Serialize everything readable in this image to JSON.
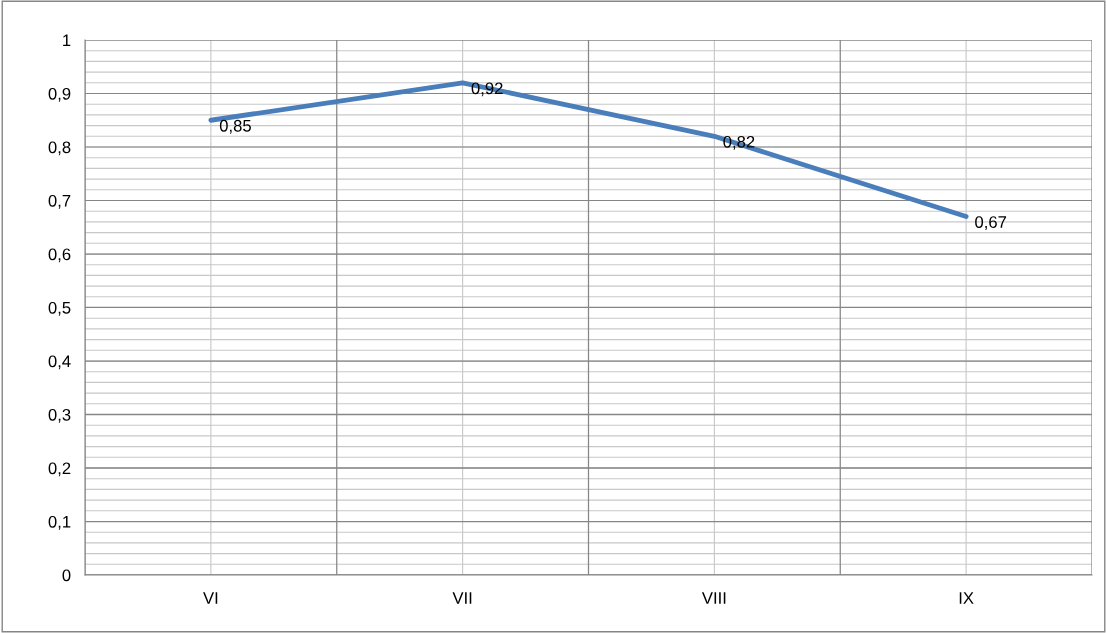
{
  "chart_data": {
    "type": "line",
    "categories": [
      "VI",
      "VII",
      "VIII",
      "IX"
    ],
    "series": [
      {
        "color": "#4a7ebb",
        "values": [
          0.85,
          0.92,
          0.82,
          0.67
        ],
        "value_labels": [
          "0,85",
          "0,92",
          "0,82",
          "0,67"
        ]
      }
    ],
    "ylim": [
      0,
      1
    ],
    "yticks": [
      {
        "value": 0,
        "label": "0"
      },
      {
        "value": 0.1,
        "label": "0,1"
      },
      {
        "value": 0.2,
        "label": "0,2"
      },
      {
        "value": 0.3,
        "label": "0,3"
      },
      {
        "value": 0.4,
        "label": "0,4"
      },
      {
        "value": 0.5,
        "label": "0,5"
      },
      {
        "value": 0.6,
        "label": "0,6"
      },
      {
        "value": 0.7,
        "label": "0,7"
      },
      {
        "value": 0.8,
        "label": "0,8"
      },
      {
        "value": 0.9,
        "label": "0,9"
      },
      {
        "value": 1,
        "label": "1"
      }
    ],
    "grid": true,
    "marker": "none",
    "line_style": "solid"
  }
}
